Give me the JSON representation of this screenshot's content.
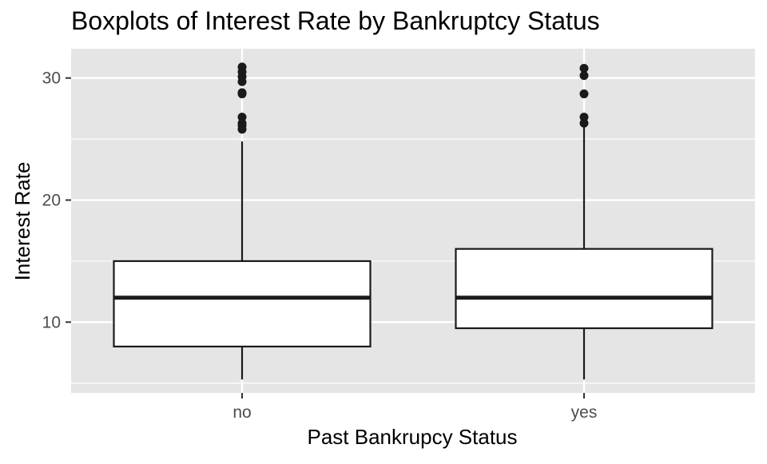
{
  "chart_data": {
    "type": "box",
    "title": "Boxplots of Interest Rate by Bankruptcy Status",
    "xlabel": "Past Bankrupcy Status",
    "ylabel": "Interest Rate",
    "categories": [
      "no",
      "yes"
    ],
    "ylim": [
      4.2,
      32.4
    ],
    "yticks": [
      10,
      20,
      30
    ],
    "boxes": [
      {
        "category": "no",
        "whisker_low": 5.3,
        "q1": 8.0,
        "median": 12.0,
        "q3": 15.0,
        "whisker_high": 24.8,
        "outliers": [
          25.8,
          26.1,
          26.3,
          26.8,
          28.7,
          28.8,
          29.7,
          30.1,
          30.5,
          30.9
        ]
      },
      {
        "category": "yes",
        "whisker_low": 5.3,
        "q1": 9.5,
        "median": 12.0,
        "q3": 16.0,
        "whisker_high": 26.1,
        "outliers": [
          26.3,
          26.8,
          28.7,
          30.2,
          30.8
        ]
      }
    ],
    "grid": true,
    "legend": "none",
    "colors": {
      "panel": "#e5e5e5",
      "grid": "#ffffff",
      "box_fill": "#ffffff",
      "box_line": "#1a1a1a",
      "point": "#1a1a1a",
      "tick_label": "#4d4d4d",
      "axis_title": "#000000"
    }
  }
}
